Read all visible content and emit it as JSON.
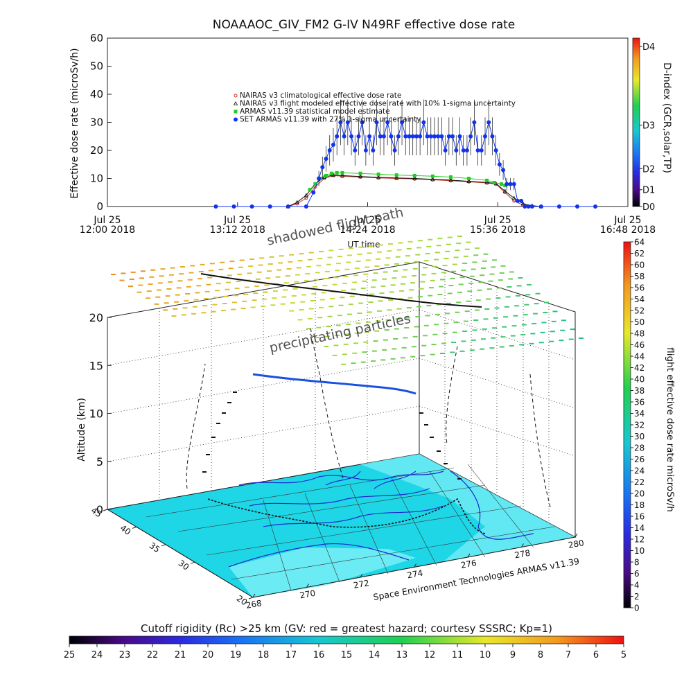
{
  "chart_data": [
    {
      "type": "line",
      "title": "NOAAAOC_GIV_FM2 G-IV   N49RF  effective dose rate",
      "xlabel": "UT time",
      "ylabel": "Effective dose rate (microSv/h)",
      "y2label": "D-index (GCR,solar,TP)",
      "ylim": [
        0,
        60
      ],
      "yticks": [
        0,
        10,
        20,
        30,
        40,
        50,
        60
      ],
      "xlim": [
        0,
        288
      ],
      "xticks": [
        {
          "t": 0,
          "l1": "Jul 25",
          "l2": "12:00 2018"
        },
        {
          "t": 72,
          "l1": "Jul 25",
          "l2": "13:12 2018"
        },
        {
          "t": 144,
          "l1": "Jul 25",
          "l2": "14:24 2018"
        },
        {
          "t": 216,
          "l1": "Jul 25",
          "l2": "15:36 2018"
        },
        {
          "t": 288,
          "l1": "Jul 25",
          "l2": "16:48 2018"
        }
      ],
      "d_index": [
        {
          "v": 0,
          "label": "D0"
        },
        {
          "v": 6,
          "label": "D1"
        },
        {
          "v": 13.5,
          "label": "D2"
        },
        {
          "v": 29,
          "label": "D3"
        },
        {
          "v": 57,
          "label": "D4"
        }
      ],
      "legend": [
        "NAIRAS v3 climatological effective dose rate",
        "NAIRAS v3 flight modeled effective dose rate with 10% 1-sigma uncertainty",
        "ARMAS v11.39 statistical model estimate",
        "SET ARMAS v11.39 with 27% 1-sigma uncertainty"
      ],
      "series": [
        {
          "name": "NAIRAS v3 climatological effective dose rate",
          "color": "#c0392b",
          "x": [
            100,
            105,
            110,
            115,
            120,
            125,
            130,
            140,
            150,
            160,
            170,
            180,
            190,
            200,
            210,
            215,
            220,
            225,
            230,
            240
          ],
          "y": [
            0,
            1,
            3,
            7,
            10,
            11,
            10.8,
            10.5,
            10.2,
            10,
            9.8,
            9.5,
            9.2,
            8.8,
            8.4,
            8,
            5,
            2,
            0.5,
            0
          ]
        },
        {
          "name": "NAIRAS v3 flight modeled effective dose rate with 10% 1-sigma uncertainty",
          "color": "#111111",
          "x": [
            100,
            105,
            110,
            115,
            120,
            125,
            130,
            140,
            150,
            160,
            170,
            180,
            190,
            200,
            210,
            215,
            220,
            225,
            230,
            235,
            240
          ],
          "y": [
            0,
            1.5,
            4,
            8,
            10.5,
            11.2,
            11,
            10.7,
            10.4,
            10.2,
            10,
            9.7,
            9.4,
            9,
            8.6,
            8.2,
            5.5,
            3,
            1,
            0.3,
            0
          ]
        },
        {
          "name": "ARMAS v11.39 statistical model estimate",
          "color": "#22cc22",
          "x": [
            112,
            115,
            118,
            121,
            124,
            127,
            130,
            140,
            150,
            160,
            170,
            180,
            190,
            200,
            210,
            214,
            218,
            220
          ],
          "y": [
            6,
            8,
            10,
            11,
            11.8,
            12,
            12,
            11.8,
            11.5,
            11.2,
            11,
            10.8,
            10.5,
            10,
            9.3,
            8.5,
            8,
            7.5
          ]
        },
        {
          "name": "SET ARMAS v11.39 with 27% 1-sigma uncertainty",
          "color": "#1133ee",
          "x": [
            60,
            70,
            80,
            90,
            100,
            110,
            114,
            117,
            119,
            121,
            123,
            125,
            127,
            129,
            131,
            133,
            135,
            137,
            139,
            141,
            143,
            145,
            147,
            149,
            151,
            153,
            155,
            157,
            159,
            161,
            163,
            165,
            167,
            169,
            171,
            173,
            175,
            177,
            179,
            181,
            183,
            185,
            187,
            189,
            191,
            193,
            195,
            197,
            199,
            201,
            203,
            205,
            207,
            209,
            211,
            213,
            215,
            217,
            219,
            221,
            223,
            225,
            227,
            229,
            231,
            233,
            235,
            240,
            250,
            260,
            270
          ],
          "y": [
            0,
            0,
            0,
            0,
            0,
            0,
            5,
            10,
            14,
            17,
            20,
            22,
            25,
            30,
            25,
            30,
            25,
            20,
            25,
            30,
            20,
            25,
            20,
            30,
            25,
            25,
            30,
            25,
            20,
            25,
            30,
            25,
            25,
            25,
            25,
            25,
            30,
            25,
            25,
            25,
            25,
            25,
            20,
            25,
            25,
            20,
            25,
            20,
            20,
            25,
            30,
            20,
            20,
            25,
            30,
            25,
            20,
            15,
            13,
            8,
            8,
            8,
            2,
            2,
            0,
            0,
            0,
            0,
            0,
            0,
            0
          ]
        }
      ]
    },
    {
      "type": "scatter",
      "title": "",
      "xlabel": "",
      "ylabel": "Altitude (km)",
      "zticks": [
        0,
        5,
        10,
        15,
        20
      ],
      "lat_ticks": [
        20,
        30,
        35,
        40,
        45
      ],
      "lat_tick_labels": [
        "20",
        "30",
        "35",
        "40",
        "45"
      ],
      "lon_ticks": [
        268,
        270,
        272,
        274,
        276,
        278,
        280
      ],
      "lon_tick_labels": [
        "268",
        "270",
        "272",
        "274",
        "276",
        "278",
        "280"
      ],
      "annotations": [
        "shadowed flight path",
        "precipitating particles",
        "Space Environment Technologies ARMAS v11.39"
      ],
      "colorbar_label": "flight effective dose rate microSv/h",
      "colorbar_ticks": [
        0,
        2,
        4,
        6,
        8,
        10,
        12,
        14,
        16,
        18,
        20,
        22,
        24,
        26,
        28,
        30,
        32,
        34,
        36,
        38,
        40,
        42,
        44,
        46,
        48,
        50,
        52,
        54,
        56,
        58,
        60,
        62,
        64
      ]
    },
    {
      "type": "heatmap",
      "title": "Cutoff rigidity (Rc) >25 km (GV: red = greatest hazard; courtesy SSSRC; Kp=1)",
      "colorbar_ticks": [
        25,
        24,
        23,
        22,
        21,
        20,
        19,
        18,
        17,
        16,
        15,
        14,
        13,
        12,
        11,
        10,
        9,
        8,
        7,
        6,
        5
      ]
    }
  ]
}
